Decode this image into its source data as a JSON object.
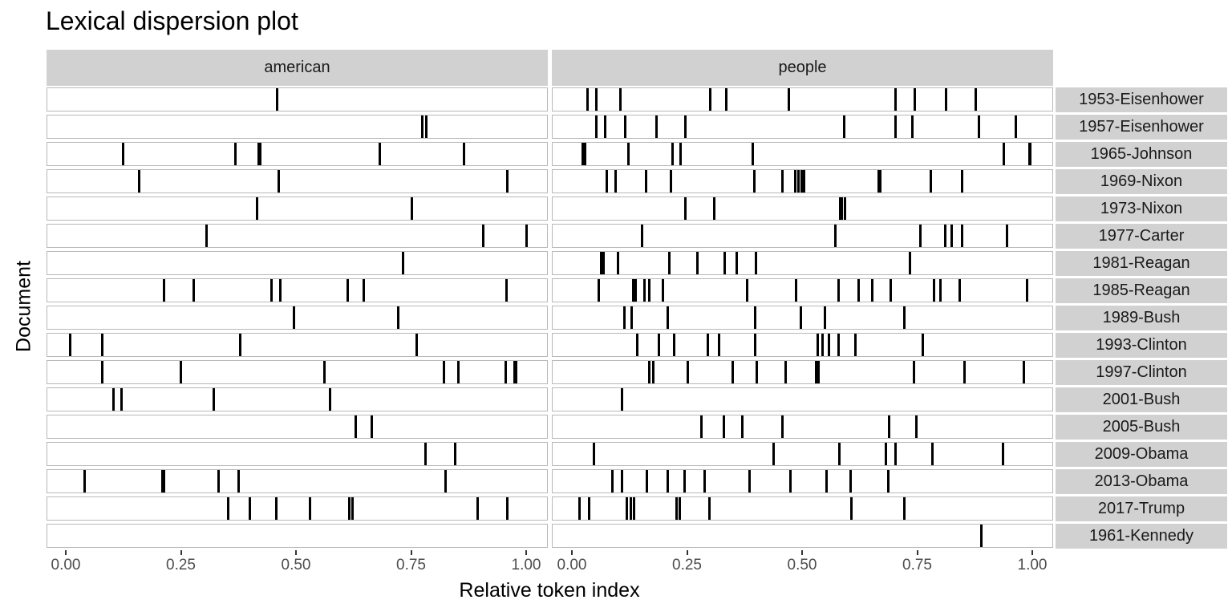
{
  "chart_data": {
    "type": "dispersion",
    "title": "Lexical dispersion plot",
    "xlabel": "Relative token index",
    "ylabel": "Document",
    "xlim": [
      0,
      1
    ],
    "x_ticks": [
      "0.00",
      "0.25",
      "0.50",
      "0.75",
      "1.00"
    ],
    "facets": [
      "american",
      "people"
    ],
    "documents": [
      "1953-Eisenhower",
      "1957-Eisenhower",
      "1965-Johnson",
      "1969-Nixon",
      "1973-Nixon",
      "1977-Carter",
      "1981-Reagan",
      "1985-Reagan",
      "1989-Bush",
      "1993-Clinton",
      "1997-Clinton",
      "2001-Bush",
      "2005-Bush",
      "2009-Obama",
      "2013-Obama",
      "2017-Trump",
      "1961-Kennedy"
    ],
    "series": [
      {
        "name": "american",
        "rows": [
          [
            0.456
          ],
          [
            0.771,
            0.78
          ],
          [
            0.122,
            0.366,
            0.416,
            0.42,
            0.679,
            0.862
          ],
          [
            0.157,
            0.46,
            0.956
          ],
          [
            0.413,
            0.749
          ],
          [
            0.303,
            0.904,
            0.998
          ],
          [
            0.73
          ],
          [
            0.211,
            0.275,
            0.444,
            0.463,
            0.61,
            0.645,
            0.955
          ],
          [
            0.493,
            0.72
          ],
          [
            0.007,
            0.077,
            0.376,
            0.76
          ],
          [
            0.077,
            0.247,
            0.559,
            0.819,
            0.85,
            0.953,
            0.972,
            0.976
          ],
          [
            0.101,
            0.118,
            0.319,
            0.571
          ],
          [
            0.627,
            0.662
          ],
          [
            0.779,
            0.843
          ],
          [
            0.038,
            0.207,
            0.211,
            0.329,
            0.373,
            0.822
          ],
          [
            0.35,
            0.397,
            0.455,
            0.528,
            0.613,
            0.62,
            0.892,
            0.956
          ],
          []
        ]
      },
      {
        "name": "people",
        "rows": [
          [
            0.031,
            0.05,
            0.102,
            0.298,
            0.333,
            0.469,
            0.7,
            0.742,
            0.81,
            0.874
          ],
          [
            0.05,
            0.07,
            0.113,
            0.181,
            0.244,
            0.589,
            0.7,
            0.737,
            0.882,
            0.962
          ],
          [
            0.021,
            0.026,
            0.12,
            0.216,
            0.233,
            0.39,
            0.936,
            0.991,
            0.993
          ],
          [
            0.074,
            0.093,
            0.159,
            0.213,
            0.394,
            0.455,
            0.483,
            0.49,
            0.496,
            0.502,
            0.663,
            0.667,
            0.777,
            0.845
          ],
          [
            0.244,
            0.307,
            0.58,
            0.584,
            0.591
          ],
          [
            0.15,
            0.57,
            0.755,
            0.809,
            0.822,
            0.845,
            0.943
          ],
          [
            0.061,
            0.066,
            0.098,
            0.209,
            0.27,
            0.33,
            0.356,
            0.397,
            0.732
          ],
          [
            0.056,
            0.131,
            0.136,
            0.155,
            0.166,
            0.195,
            0.378,
            0.484,
            0.577,
            0.62,
            0.65,
            0.69,
            0.784,
            0.798,
            0.84,
            0.986
          ],
          [
            0.112,
            0.127,
            0.206,
            0.395,
            0.494,
            0.547,
            0.72
          ],
          [
            0.139,
            0.186,
            0.22,
            0.293,
            0.317,
            0.395,
            0.531,
            0.541,
            0.556,
            0.577,
            0.613,
            0.76
          ],
          [
            0.166,
            0.174,
            0.249,
            0.347,
            0.399,
            0.462,
            0.528,
            0.533,
            0.74,
            0.85,
            0.979
          ],
          [
            0.106
          ],
          [
            0.279,
            0.327,
            0.368,
            0.454,
            0.686,
            0.745
          ],
          [
            0.046,
            0.436,
            0.578,
            0.679,
            0.7,
            0.78,
            0.934
          ],
          [
            0.085,
            0.106,
            0.16,
            0.205,
            0.243,
            0.285,
            0.383,
            0.472,
            0.55,
            0.603,
            0.685
          ],
          [
            0.014,
            0.034,
            0.116,
            0.126,
            0.132,
            0.224,
            0.232,
            0.297,
            0.605,
            0.72
          ],
          [
            0.887
          ]
        ]
      }
    ],
    "grid": false,
    "legend": "none"
  },
  "labels": {
    "title": "Lexical dispersion plot",
    "xlabel": "Relative token index",
    "ylabel": "Document",
    "facet_left": "american",
    "facet_right": "people",
    "ticks": [
      "0.00",
      "0.25",
      "0.50",
      "0.75",
      "1.00"
    ]
  }
}
